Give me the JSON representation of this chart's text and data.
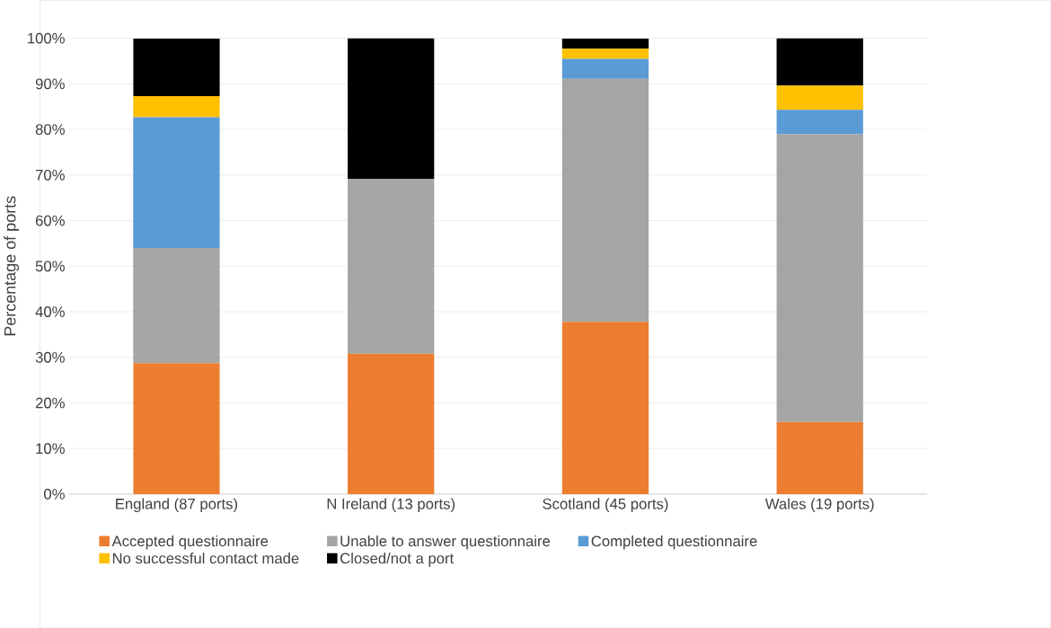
{
  "chart_data": {
    "type": "bar",
    "stacked": true,
    "ylabel": "Percentage of ports",
    "categories": [
      "England (87 ports)",
      "N Ireland (13 ports)",
      "Scotland (45 ports)",
      "Wales (19 ports)"
    ],
    "series": [
      {
        "name": "Accepted questionnaire",
        "color": "#ed7d31",
        "values": [
          28.7,
          30.8,
          37.8,
          15.8
        ]
      },
      {
        "name": "Unable to answer questionnaire",
        "color": "#a5a5a5",
        "values": [
          25.3,
          38.4,
          53.3,
          63.2
        ]
      },
      {
        "name": "Completed questionnaire",
        "color": "#5b9bd5",
        "values": [
          28.7,
          null,
          4.4,
          5.3
        ]
      },
      {
        "name": "No successful contact made",
        "color": "#ffc000",
        "values": [
          4.6,
          null,
          2.2,
          5.3
        ]
      },
      {
        "name": "Closed/not a port",
        "color": "#000000",
        "values": [
          12.6,
          30.8,
          2.2,
          10.4
        ]
      }
    ],
    "ylim": [
      0,
      100
    ],
    "yticks": [
      {
        "value": 0,
        "label": "0%"
      },
      {
        "value": 10,
        "label": "10%"
      },
      {
        "value": 20,
        "label": "20%"
      },
      {
        "value": 30,
        "label": "30%"
      },
      {
        "value": 40,
        "label": "40%"
      },
      {
        "value": 50,
        "label": "50%"
      },
      {
        "value": 60,
        "label": "60%"
      },
      {
        "value": 70,
        "label": "70%"
      },
      {
        "value": 80,
        "label": "80%"
      },
      {
        "value": 90,
        "label": "90%"
      },
      {
        "value": 100,
        "label": "100%"
      }
    ],
    "grid": "y",
    "legend": "bottom"
  }
}
